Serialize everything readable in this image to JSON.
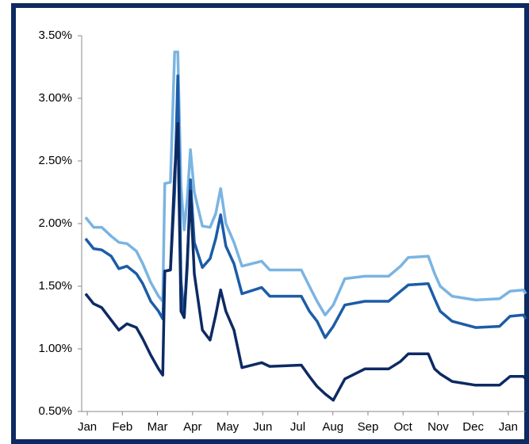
{
  "chart_data": {
    "type": "line",
    "x": [
      -0.05,
      0.18,
      0.41,
      0.68,
      0.9,
      1.13,
      1.4,
      1.58,
      1.81,
      2.03,
      2.15,
      2.21,
      2.37,
      2.49,
      2.58,
      2.67,
      2.76,
      2.85,
      2.94,
      3.05,
      3.28,
      3.5,
      3.66,
      3.8,
      3.95,
      4.18,
      4.41,
      4.97,
      5.2,
      6.1,
      6.33,
      6.55,
      6.78,
      7.01,
      7.34,
      7.91,
      8.59,
      8.93,
      9.15,
      9.72,
      9.9,
      10.06,
      10.4,
      11.07,
      11.75,
      12.05,
      12.43,
      12.5
    ],
    "series": [
      {
        "color": "#7ab4e2",
        "values": [
          2.05,
          1.97,
          1.97,
          1.9,
          1.85,
          1.84,
          1.78,
          1.68,
          1.53,
          1.42,
          1.38,
          2.32,
          2.33,
          3.37,
          3.37,
          2.3,
          1.95,
          2.2,
          2.59,
          2.25,
          1.98,
          1.97,
          2.08,
          2.28,
          2.0,
          1.85,
          1.66,
          1.7,
          1.63,
          1.63,
          1.5,
          1.38,
          1.27,
          1.35,
          1.56,
          1.58,
          1.58,
          1.66,
          1.73,
          1.74,
          1.6,
          1.5,
          1.42,
          1.39,
          1.4,
          1.46,
          1.47,
          1.44
        ]
      },
      {
        "color": "#1c5ca8",
        "values": [
          1.88,
          1.8,
          1.79,
          1.74,
          1.64,
          1.66,
          1.6,
          1.52,
          1.38,
          1.3,
          1.24,
          1.62,
          1.63,
          2.25,
          3.18,
          1.55,
          1.25,
          1.65,
          2.35,
          1.85,
          1.65,
          1.72,
          1.88,
          2.07,
          1.82,
          1.68,
          1.44,
          1.49,
          1.42,
          1.42,
          1.3,
          1.22,
          1.09,
          1.18,
          1.35,
          1.38,
          1.38,
          1.46,
          1.51,
          1.52,
          1.4,
          1.3,
          1.22,
          1.17,
          1.18,
          1.26,
          1.27,
          1.24
        ]
      },
      {
        "color": "#0d2a63",
        "values": [
          1.44,
          1.36,
          1.33,
          1.23,
          1.15,
          1.2,
          1.17,
          1.08,
          0.95,
          0.84,
          0.79,
          1.62,
          1.63,
          2.4,
          2.8,
          1.3,
          1.25,
          1.7,
          2.26,
          1.6,
          1.15,
          1.07,
          1.27,
          1.47,
          1.3,
          1.15,
          0.85,
          0.89,
          0.86,
          0.87,
          0.78,
          0.7,
          0.64,
          0.59,
          0.76,
          0.84,
          0.84,
          0.9,
          0.96,
          0.96,
          0.84,
          0.8,
          0.74,
          0.71,
          0.71,
          0.78,
          0.78,
          0.76
        ]
      }
    ],
    "xlim": [
      -0.16,
      12.5
    ],
    "xticks": [
      {
        "value": 0,
        "label": "Jan"
      },
      {
        "value": 1,
        "label": "Feb"
      },
      {
        "value": 2,
        "label": "Mar"
      },
      {
        "value": 3,
        "label": "Apr"
      },
      {
        "value": 4,
        "label": "May"
      },
      {
        "value": 5,
        "label": "Jun"
      },
      {
        "value": 6,
        "label": "Jul"
      },
      {
        "value": 7,
        "label": "Aug"
      },
      {
        "value": 8,
        "label": "Sep"
      },
      {
        "value": 9,
        "label": "Oct"
      },
      {
        "value": 10,
        "label": "Nov"
      },
      {
        "value": 11,
        "label": "Dec"
      },
      {
        "value": 12,
        "label": "Jan"
      }
    ],
    "ylim": [
      0.5,
      3.5
    ],
    "yticks": [
      {
        "value": 0.5,
        "label": "0.50%"
      },
      {
        "value": 1.0,
        "label": "1.00%"
      },
      {
        "value": 1.5,
        "label": "1.50%"
      },
      {
        "value": 2.0,
        "label": "2.00%"
      },
      {
        "value": 2.5,
        "label": "2.50%"
      },
      {
        "value": 3.0,
        "label": "3.00%"
      },
      {
        "value": 3.5,
        "label": "3.50%"
      }
    ]
  }
}
